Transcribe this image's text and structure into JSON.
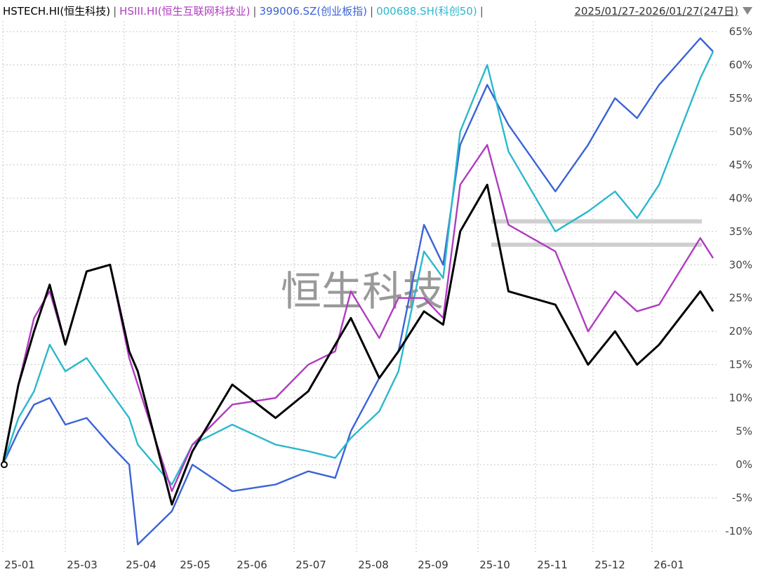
{
  "legend": {
    "items": [
      {
        "label": "HSTECH.HI(恒生科技)",
        "color": "#000000"
      },
      {
        "label": "HSIII.HI(恒生互联网科技业)",
        "color": "#b03cc0"
      },
      {
        "label": "399006.SZ(创业板指)",
        "color": "#3a63d6"
      },
      {
        "label": "000688.SH(科创50)",
        "color": "#2bb8cc"
      }
    ],
    "separator": "|"
  },
  "range": {
    "label": "2025/01/27-2026/01/27(247日)"
  },
  "watermark": "恒生科技",
  "chart_data": {
    "type": "line",
    "x_ticks": [
      "25-01",
      "25-03",
      "25-04",
      "25-05",
      "25-06",
      "25-07",
      "25-08",
      "25-09",
      "25-10",
      "25-11",
      "25-12",
      "26-01"
    ],
    "y_ticks": [
      "65%",
      "60%",
      "55%",
      "50%",
      "45%",
      "40%",
      "35%",
      "30%",
      "25%",
      "20%",
      "15%",
      "10%",
      "5%",
      "0%",
      "-5%",
      "-10%"
    ],
    "y_unit": "%",
    "ylim": [
      -12,
      66
    ],
    "grid": true,
    "legend_position": "top-left",
    "x_positions": [
      0.0,
      0.022,
      0.044,
      0.066,
      0.088,
      0.118,
      0.151,
      0.178,
      0.19,
      0.238,
      0.267,
      0.323,
      0.384,
      0.43,
      0.468,
      0.49,
      0.53,
      0.557,
      0.593,
      0.62,
      0.644,
      0.682,
      0.712,
      0.778,
      0.824,
      0.862,
      0.893,
      0.924,
      0.982,
      1.0
    ],
    "series": [
      {
        "name": "HSTECH.HI(恒生科技)",
        "color": "#000000",
        "values": [
          0.0,
          12,
          20,
          27,
          18,
          29,
          30,
          17,
          14,
          -6,
          2,
          12,
          7,
          11,
          18,
          22,
          13,
          17,
          23,
          21,
          35,
          42,
          26,
          24,
          15,
          20,
          15,
          18,
          26,
          23
        ]
      },
      {
        "name": "HSIII.HI(恒生互联网科技业)",
        "color": "#b03cc0",
        "values": [
          0.0,
          12,
          22,
          26,
          18,
          29,
          30,
          16,
          12,
          -4,
          3,
          9,
          10,
          15,
          17,
          26,
          19,
          25,
          25,
          22,
          42,
          48,
          36,
          32,
          20,
          26,
          23,
          24,
          34,
          31
        ]
      },
      {
        "name": "399006.SZ(创业板指)",
        "color": "#3a63d6",
        "values": [
          0.0,
          5,
          9,
          10,
          6,
          7,
          3,
          0,
          -12,
          -7,
          0,
          -4,
          -3,
          -1,
          -2,
          5,
          13,
          17,
          36,
          30,
          48,
          57,
          51,
          41,
          48,
          55,
          52,
          57,
          64,
          62
        ]
      },
      {
        "name": "000688.SH(科创50)",
        "color": "#2bb8cc",
        "values": [
          0.0,
          7,
          11,
          18,
          14,
          16,
          11,
          7,
          3,
          -3,
          3,
          6,
          3,
          2,
          1,
          4,
          8,
          14,
          32,
          28,
          50,
          60,
          47,
          35,
          38,
          41,
          37,
          42,
          58,
          62
        ]
      }
    ],
    "reference_lines": [
      36.5,
      33.0
    ]
  }
}
